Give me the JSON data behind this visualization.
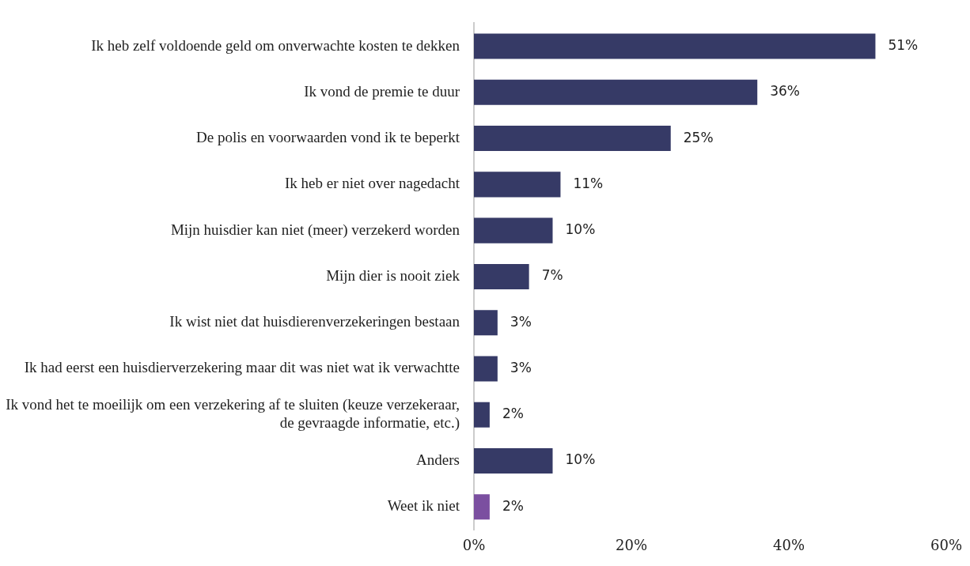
{
  "chart_data": {
    "type": "bar",
    "orientation": "horizontal",
    "categories": [
      "Ik heb zelf voldoende geld om onverwachte kosten te dekken",
      "Ik vond de premie te duur",
      "De polis en voorwaarden vond ik te beperkt",
      "Ik heb er niet over nagedacht",
      "Mijn huisdier kan niet (meer) verzekerd worden",
      "Mijn dier is nooit ziek",
      "Ik wist niet dat huisdierenverzekeringen bestaan",
      "Ik had eerst een huisdierverzekering maar dit was niet wat ik verwachtte",
      "Ik vond het te moeilijk om een verzekering af te sluiten (keuze verzekeraar, de gevraagde informatie, etc.)",
      "Anders",
      "Weet ik niet"
    ],
    "values": [
      51,
      36,
      25,
      11,
      10,
      7,
      3,
      3,
      2,
      10,
      2
    ],
    "value_labels": [
      "51%",
      "36%",
      "25%",
      "11%",
      "10%",
      "7%",
      "3%",
      "3%",
      "2%",
      "10%",
      "2%"
    ],
    "colors": [
      "#363a66",
      "#363a66",
      "#363a66",
      "#363a66",
      "#363a66",
      "#363a66",
      "#363a66",
      "#363a66",
      "#363a66",
      "#363a66",
      "#7b4fa0"
    ],
    "xlim": [
      0,
      60
    ],
    "xticks": [
      {
        "value": 0,
        "label": "0%"
      },
      {
        "value": 20,
        "label": "20%"
      },
      {
        "value": 40,
        "label": "40%"
      },
      {
        "value": 60,
        "label": "60%"
      }
    ],
    "grid": false,
    "legend": false
  }
}
